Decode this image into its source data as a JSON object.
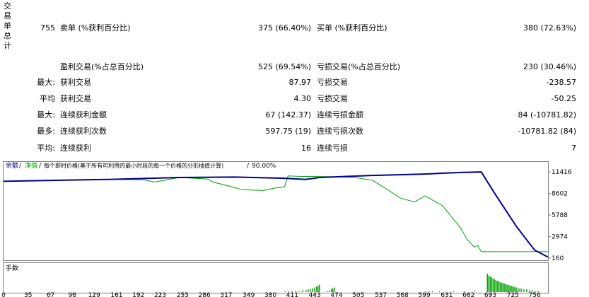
{
  "sidebar": {
    "chars": [
      "交",
      "易",
      "单",
      "总",
      "计"
    ]
  },
  "summary": {
    "total_trades": "755",
    "short_label": "卖单 (%获利百分比)",
    "short_value": "375 (66.40%)",
    "long_label": "买单 (%获利百分比)",
    "long_value": "380 (72.63%)"
  },
  "rows": {
    "profit_trades_label": "盈利交易(%占总百分比)",
    "profit_trades_value": "525 (69.54%)",
    "loss_trades_label": "亏损交易(%占总百分比)",
    "loss_trades_value": "230 (30.46%)",
    "largest_prefix": "最大:",
    "largest_profit_label": "获利交易",
    "largest_profit_value": "87.97",
    "largest_loss_label": "亏损交易",
    "largest_loss_value": "-238.57",
    "average_prefix": "平均",
    "average_profit_label": "获利交易",
    "average_profit_value": "4.30",
    "average_loss_label": "亏损交易",
    "average_loss_value": "-50.25",
    "max_prefix": "最大:",
    "max_consec_wins_label": "连续获利金额",
    "max_consec_wins_value": "67 (142.37)",
    "max_consec_losses_label": "连续亏损金额",
    "max_consec_losses_value": "84 (-10781.82)",
    "maximal_prefix": "最多:",
    "maximal_consec_profit_label": "连续获利次数",
    "maximal_consec_profit_value": "597.75 (19)",
    "maximal_consec_loss_label": "连续亏损次数",
    "maximal_consec_loss_value": "-10781.82 (84)",
    "avg_prefix": "平均:",
    "avg_consec_wins_label": "连续获利",
    "avg_consec_wins_value": "16",
    "avg_consec_losses_label": "连续亏损",
    "avg_consec_losses_value": "7"
  },
  "chart": {
    "legend_balance": "余额",
    "legend_sep1": "/",
    "legend_equity": "净值",
    "legend_sep2": "/",
    "legend_model": "每个即时价格(基于所有可利用的最小时段的每一个价格的分形插值计算)",
    "legend_sep3": "/",
    "legend_quality": "90.00%",
    "volume_label": "手数",
    "colors": {
      "balance": "#00008b",
      "equity": "#00a000",
      "volume": "#00a000"
    }
  },
  "chart_data": {
    "type": "line",
    "y_ticks": [
      "11416",
      "8602",
      "5788",
      "2974",
      "160"
    ],
    "x_ticks": [
      "0",
      "35",
      "67",
      "98",
      "129",
      "161",
      "192",
      "223",
      "255",
      "286",
      "317",
      "349",
      "380",
      "411",
      "443",
      "474",
      "505",
      "537",
      "568",
      "599",
      "631",
      "662",
      "693",
      "725",
      "756"
    ],
    "xlim": [
      0,
      775
    ],
    "ylim": [
      160,
      11900
    ],
    "series": [
      {
        "name": "余额",
        "points": [
          [
            0,
            10200
          ],
          [
            60,
            10300
          ],
          [
            150,
            10450
          ],
          [
            250,
            10700
          ],
          [
            330,
            10750
          ],
          [
            400,
            10600
          ],
          [
            430,
            10450
          ],
          [
            450,
            10700
          ],
          [
            520,
            10950
          ],
          [
            600,
            11150
          ],
          [
            650,
            11350
          ],
          [
            680,
            11416
          ],
          [
            700,
            8500
          ],
          [
            730,
            4300
          ],
          [
            756,
            1200
          ],
          [
            775,
            300
          ]
        ]
      },
      {
        "name": "净值",
        "points": [
          [
            0,
            10200
          ],
          [
            60,
            10300
          ],
          [
            150,
            10450
          ],
          [
            200,
            10400
          ],
          [
            215,
            10100
          ],
          [
            250,
            10700
          ],
          [
            290,
            10500
          ],
          [
            300,
            10050
          ],
          [
            320,
            9600
          ],
          [
            340,
            9100
          ],
          [
            370,
            9000
          ],
          [
            385,
            9300
          ],
          [
            400,
            9500
          ],
          [
            405,
            10900
          ],
          [
            420,
            10850
          ],
          [
            470,
            10800
          ],
          [
            500,
            10700
          ],
          [
            525,
            10350
          ],
          [
            545,
            9200
          ],
          [
            565,
            8000
          ],
          [
            585,
            7500
          ],
          [
            600,
            8300
          ],
          [
            625,
            7000
          ],
          [
            640,
            5300
          ],
          [
            650,
            4200
          ],
          [
            660,
            2600
          ],
          [
            670,
            1600
          ],
          [
            675,
            1800
          ],
          [
            680,
            1000
          ],
          [
            700,
            1000
          ],
          [
            760,
            1000
          ],
          [
            775,
            1000
          ]
        ]
      }
    ],
    "volume": [
      {
        "x": 400,
        "v": 1
      },
      {
        "x": 405,
        "v": 1
      },
      {
        "x": 410,
        "v": 1
      },
      {
        "x": 415,
        "v": 1
      },
      {
        "x": 420,
        "v": 1
      },
      {
        "x": 425,
        "v": 2
      },
      {
        "x": 430,
        "v": 2
      },
      {
        "x": 433,
        "v": 3
      },
      {
        "x": 436,
        "v": 3
      },
      {
        "x": 439,
        "v": 4
      },
      {
        "x": 442,
        "v": 5
      },
      {
        "x": 445,
        "v": 6
      },
      {
        "x": 447,
        "v": 7
      },
      {
        "x": 449,
        "v": 8
      },
      {
        "x": 460,
        "v": 1
      },
      {
        "x": 463,
        "v": 2
      },
      {
        "x": 466,
        "v": 3
      },
      {
        "x": 468,
        "v": 4
      },
      {
        "x": 470,
        "v": 5
      },
      {
        "x": 600,
        "v": 1
      },
      {
        "x": 605,
        "v": 1
      },
      {
        "x": 610,
        "v": 1
      },
      {
        "x": 620,
        "v": 1
      },
      {
        "x": 640,
        "v": 1
      },
      {
        "x": 655,
        "v": 1
      },
      {
        "x": 670,
        "v": 1
      },
      {
        "x": 688,
        "v": 20
      },
      {
        "x": 690,
        "v": 18
      },
      {
        "x": 692,
        "v": 17
      },
      {
        "x": 694,
        "v": 16
      },
      {
        "x": 696,
        "v": 15
      },
      {
        "x": 698,
        "v": 14
      },
      {
        "x": 700,
        "v": 13
      },
      {
        "x": 702,
        "v": 12
      },
      {
        "x": 704,
        "v": 12
      },
      {
        "x": 706,
        "v": 11
      },
      {
        "x": 708,
        "v": 10
      },
      {
        "x": 710,
        "v": 10
      },
      {
        "x": 712,
        "v": 9
      },
      {
        "x": 714,
        "v": 9
      },
      {
        "x": 716,
        "v": 8
      },
      {
        "x": 718,
        "v": 8
      },
      {
        "x": 720,
        "v": 7
      },
      {
        "x": 722,
        "v": 7
      },
      {
        "x": 724,
        "v": 6
      },
      {
        "x": 726,
        "v": 6
      },
      {
        "x": 728,
        "v": 5
      },
      {
        "x": 730,
        "v": 5
      },
      {
        "x": 733,
        "v": 4
      },
      {
        "x": 736,
        "v": 4
      },
      {
        "x": 740,
        "v": 3
      },
      {
        "x": 744,
        "v": 3
      },
      {
        "x": 748,
        "v": 2
      },
      {
        "x": 752,
        "v": 2
      },
      {
        "x": 756,
        "v": 1
      },
      {
        "x": 760,
        "v": 1
      }
    ]
  }
}
